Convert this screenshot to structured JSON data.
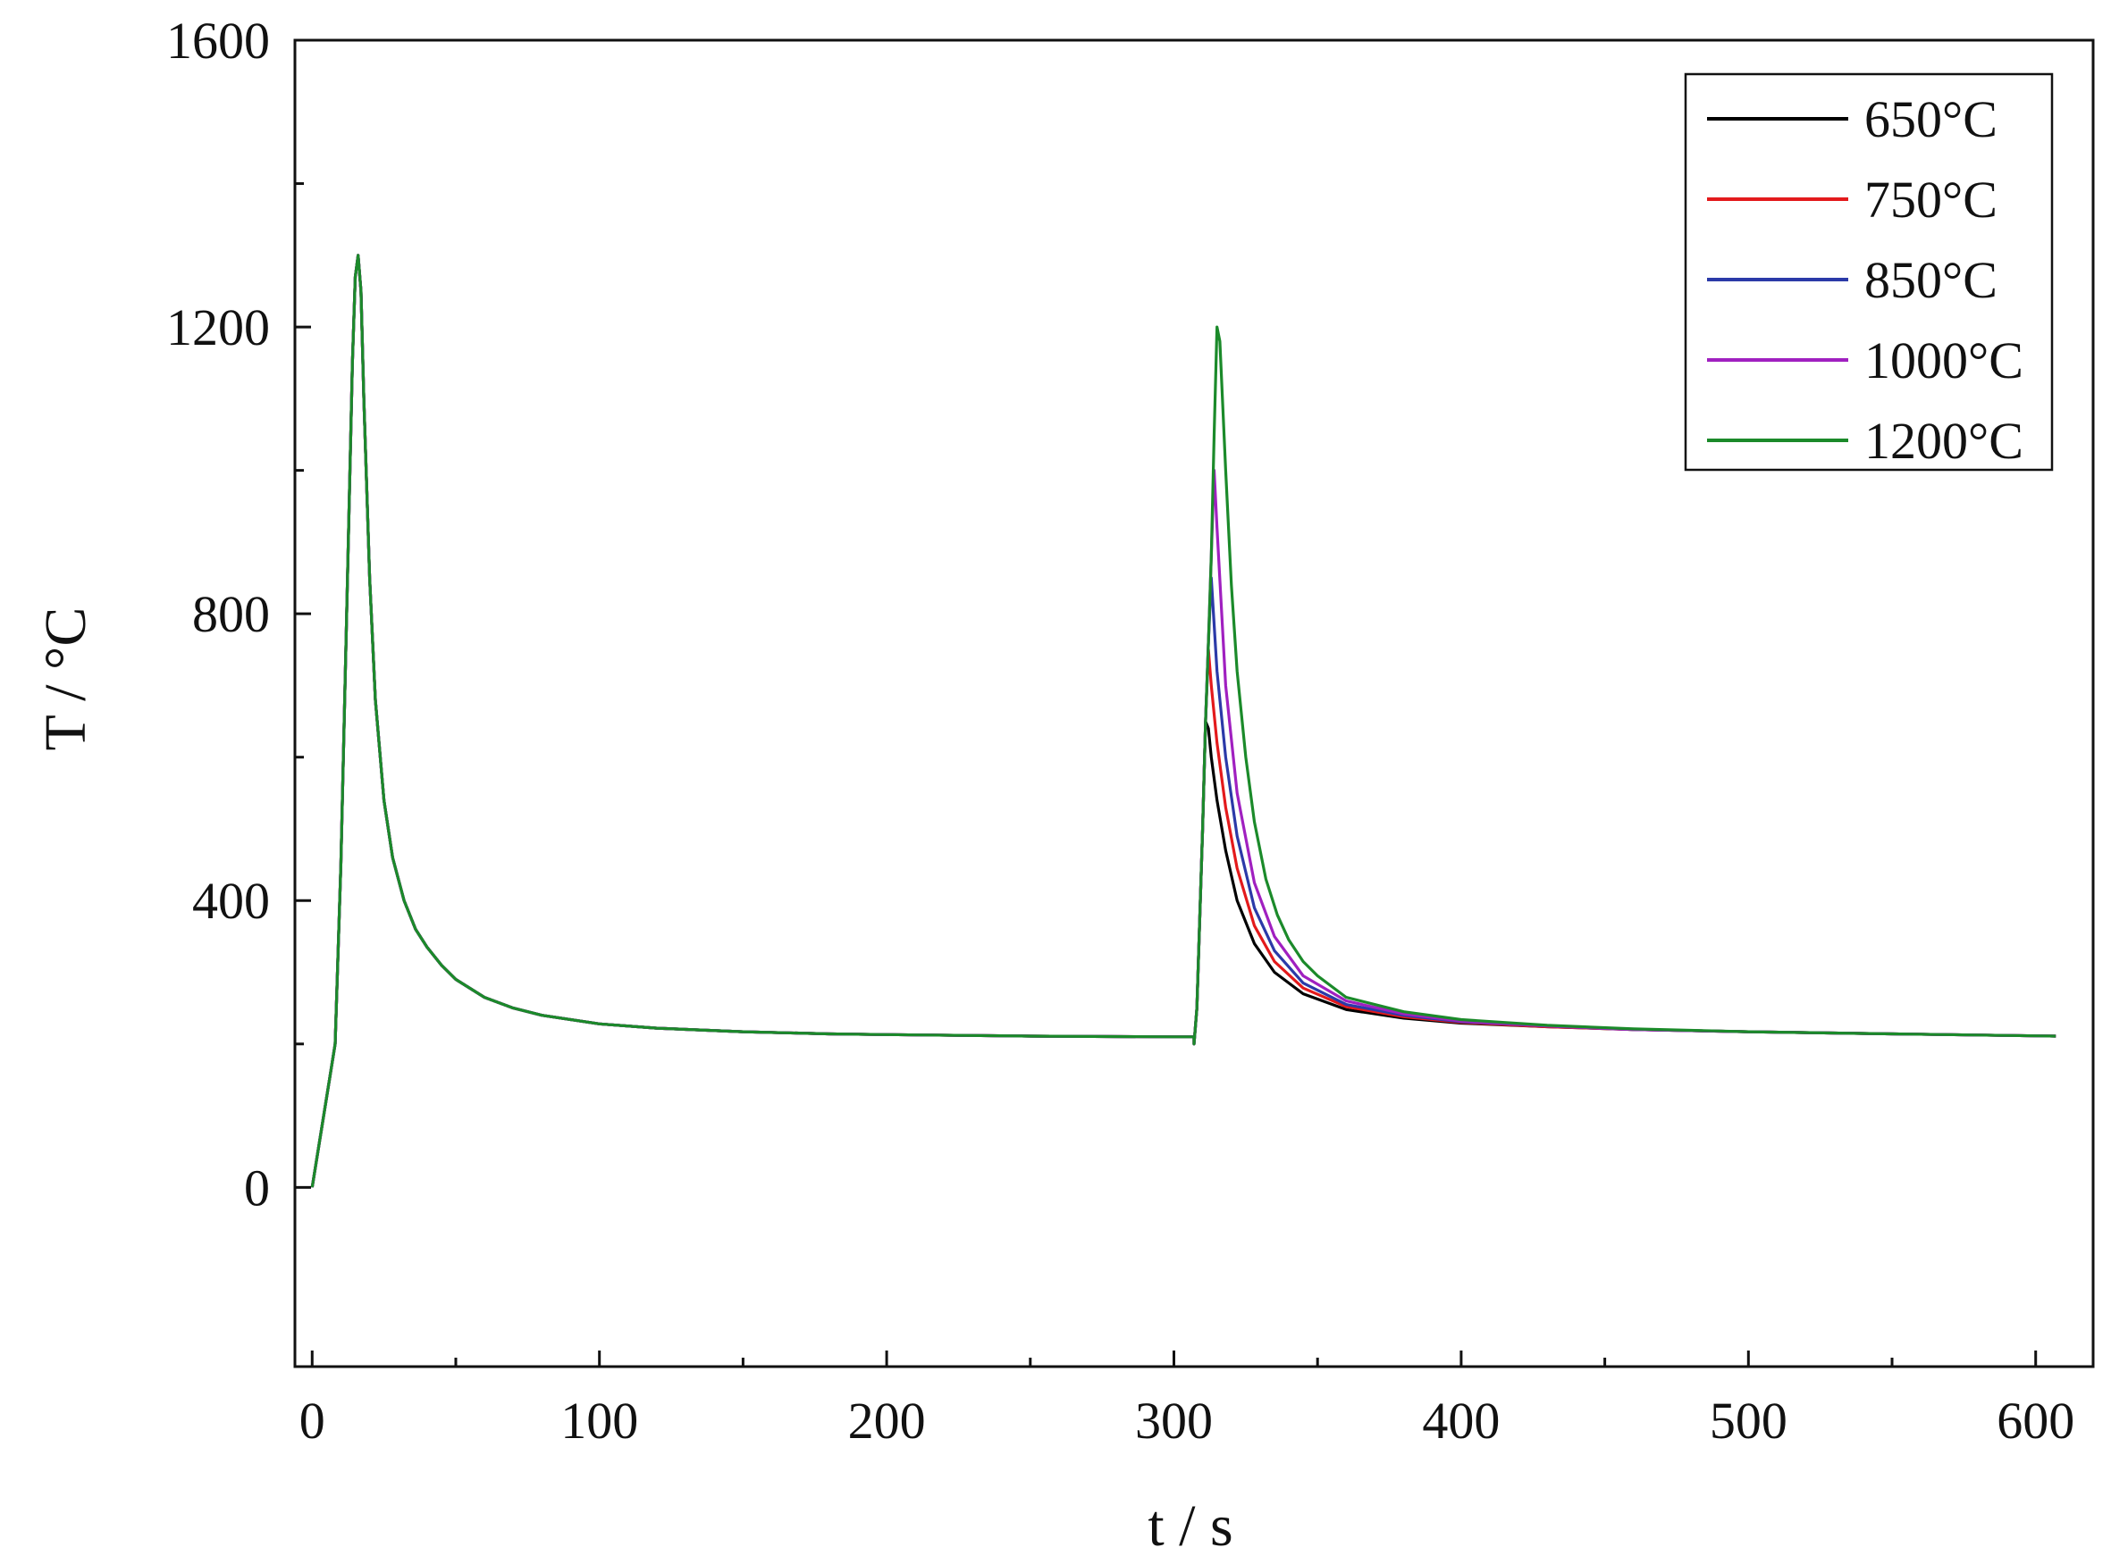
{
  "chart_data": {
    "type": "line",
    "xlabel": "t / s",
    "ylabel": "T / °C",
    "xlim": [
      -6,
      620
    ],
    "ylim": [
      -250,
      1600
    ],
    "xticks": [
      0,
      100,
      200,
      300,
      400,
      500,
      600
    ],
    "yticks": [
      0,
      400,
      800,
      1200,
      1600
    ],
    "x_minor_ticks": [
      50,
      150,
      250,
      350,
      450,
      550
    ],
    "y_minor_ticks": [
      200,
      600,
      1000,
      1400
    ],
    "grid": false,
    "legend_position": "top-right",
    "common_segment": {
      "x": [
        0,
        6,
        8,
        10,
        12,
        14,
        15,
        16,
        17,
        18,
        20,
        22,
        25,
        28,
        32,
        36,
        40,
        45,
        50,
        60,
        70,
        80,
        100,
        120,
        150,
        180,
        200,
        250,
        300,
        307
      ],
      "y": [
        0,
        150,
        200,
        450,
        800,
        1150,
        1270,
        1300,
        1250,
        1100,
        850,
        680,
        540,
        460,
        400,
        360,
        335,
        310,
        290,
        265,
        250,
        240,
        228,
        222,
        217,
        214,
        213,
        211,
        210,
        210
      ]
    },
    "series": [
      {
        "name": "650°C",
        "color": "#000000",
        "x": [
          307,
          308,
          310,
          311,
          312,
          313,
          315,
          318,
          322,
          328,
          335,
          345,
          360,
          380,
          400,
          430,
          460,
          500,
          550,
          607
        ],
        "y": [
          200,
          250,
          500,
          650,
          640,
          600,
          540,
          470,
          400,
          340,
          300,
          270,
          248,
          236,
          229,
          224,
          220,
          217,
          214,
          211
        ]
      },
      {
        "name": "750°C",
        "color": "#e31a1c",
        "x": [
          307,
          308,
          310,
          311,
          312,
          313,
          315,
          318,
          322,
          328,
          335,
          345,
          360,
          380,
          400,
          430,
          460,
          500,
          550,
          607
        ],
        "y": [
          200,
          250,
          500,
          650,
          750,
          700,
          620,
          530,
          445,
          365,
          315,
          278,
          252,
          238,
          230,
          224,
          220,
          217,
          214,
          211
        ]
      },
      {
        "name": "850°C",
        "color": "#2b3aa8",
        "x": [
          307,
          308,
          310,
          311,
          312,
          313,
          315,
          318,
          322,
          328,
          335,
          345,
          360,
          380,
          400,
          430,
          460,
          500,
          550,
          607
        ],
        "y": [
          200,
          250,
          500,
          650,
          760,
          850,
          720,
          600,
          490,
          390,
          330,
          285,
          255,
          240,
          231,
          225,
          220,
          217,
          214,
          211
        ]
      },
      {
        "name": "1000°C",
        "color": "#a020c0",
        "x": [
          307,
          308,
          310,
          311,
          312,
          313,
          314,
          315,
          318,
          322,
          328,
          335,
          345,
          360,
          380,
          400,
          430,
          460,
          500,
          550,
          607
        ],
        "y": [
          200,
          250,
          500,
          650,
          760,
          880,
          1000,
          920,
          700,
          550,
          425,
          350,
          295,
          260,
          242,
          232,
          225,
          220,
          217,
          214,
          211
        ]
      },
      {
        "name": "1200°C",
        "color": "#1b8a2a",
        "x": [
          307,
          308,
          310,
          311,
          312,
          313,
          314,
          315,
          316,
          318,
          320,
          322,
          325,
          328,
          332,
          336,
          340,
          345,
          350,
          360,
          380,
          400,
          430,
          460,
          500,
          550,
          607
        ],
        "y": [
          200,
          250,
          500,
          650,
          760,
          880,
          1050,
          1200,
          1180,
          1000,
          840,
          720,
          600,
          510,
          430,
          380,
          345,
          315,
          295,
          265,
          245,
          234,
          226,
          221,
          217,
          214,
          211
        ]
      }
    ]
  }
}
